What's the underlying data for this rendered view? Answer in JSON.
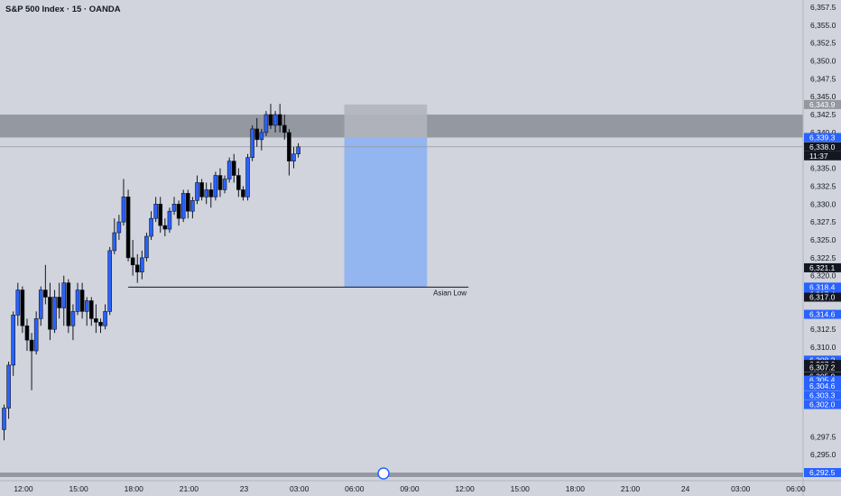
{
  "window": {
    "title": "S&P 500 Index · 15 · OANDA"
  },
  "colors": {
    "background": "#d1d4dc",
    "up_candle": "#2962ff",
    "down_candle": "#000000",
    "supply_zone": "#8a8d96",
    "target_zone": "#8fb3f0",
    "stop_zone": "#b2b5be",
    "current_price_label": "#131722",
    "blue_label": "#2962ff",
    "dark_label": "#131722",
    "axis_text": "#131722"
  },
  "chart_data": {
    "type": "candlestick",
    "symbol": "S&P 500 Index",
    "interval": "15",
    "exchange": "OANDA",
    "ylim": [
      6292.5,
      6358
    ],
    "y_ticks": [
      "6,357.5",
      "6,355.0",
      "6,352.5",
      "6,350.0",
      "6,347.5",
      "6,345.0",
      "6,342.5",
      "6,340.0",
      "6,337.5",
      "6,335.0",
      "6,332.5",
      "6,330.0",
      "6,327.5",
      "6,325.0",
      "6,322.5",
      "6,320.0",
      "6,317.5",
      "6,312.5",
      "6,310.0",
      "6,297.5",
      "6,295.0"
    ],
    "y_tick_values": [
      6357.5,
      6355,
      6352.5,
      6350,
      6347.5,
      6345,
      6342.5,
      6340,
      6337.5,
      6335,
      6332.5,
      6330,
      6327.5,
      6325,
      6322.5,
      6320,
      6317.5,
      6312.5,
      6310,
      6297.5,
      6295
    ],
    "x_ticks": [
      "12:00",
      "15:00",
      "18:00",
      "21:00",
      "23",
      "03:00",
      "06:00",
      "09:00",
      "12:00",
      "15:00",
      "18:00",
      "21:00",
      "24",
      "03:00",
      "06:00"
    ],
    "x_tick_slots": [
      5,
      17,
      29,
      41,
      53,
      65,
      77,
      89,
      101,
      113,
      125,
      137,
      149,
      161,
      173
    ],
    "price_labels": [
      {
        "text": "6,343.9",
        "style": "light",
        "value": 6343.9
      },
      {
        "text": "6,339.3",
        "style": "blue",
        "value": 6339.3
      },
      {
        "text": "6,338.0",
        "style": "dark",
        "value": 6338.0
      },
      {
        "text": "6,321.1",
        "style": "dark",
        "value": 6321.1
      },
      {
        "text": "6,318.4",
        "style": "blue",
        "value": 6318.4
      },
      {
        "text": "6,317.4",
        "style": "blue",
        "value": 6317.4
      },
      {
        "text": "6,317.0",
        "style": "dark",
        "value": 6317.0
      },
      {
        "text": "6,314.6",
        "style": "blue",
        "value": 6314.6
      },
      {
        "text": "6,308.2",
        "style": "blue",
        "value": 6308.2
      },
      {
        "text": "6,307.6",
        "style": "dark",
        "value": 6307.6
      },
      {
        "text": "6,307.2",
        "style": "dark",
        "value": 6307.2
      },
      {
        "text": "6,305.9",
        "style": "dark",
        "value": 6305.9
      },
      {
        "text": "6,305.4",
        "style": "blue",
        "value": 6305.4
      },
      {
        "text": "6,304.6",
        "style": "blue",
        "value": 6304.6
      },
      {
        "text": "6,303.3",
        "style": "blue",
        "value": 6303.3
      },
      {
        "text": "6,302.0",
        "style": "blue",
        "value": 6302.0
      },
      {
        "text": "6,292.5",
        "style": "blue",
        "value": 6292.5
      }
    ],
    "countdown": "11:37",
    "current_price": 6338.0,
    "zones": {
      "supply": {
        "top": 6342.5,
        "bottom": 6339.3
      },
      "position_stop": {
        "top": 6343.9,
        "bottom": 6339.3,
        "start_slot": 74,
        "end_slot": 92
      },
      "position_target": {
        "top": 6339.3,
        "bottom": 6318.4,
        "start_slot": 74,
        "end_slot": 92
      }
    },
    "asian_low": {
      "label": "Asian Low",
      "value": 6318.4,
      "start_slot": 27,
      "end_slot": 101
    },
    "candles": [
      [
        6298.5,
        6302,
        6297,
        6301.5
      ],
      [
        6301.5,
        6308,
        6300,
        6307.5
      ],
      [
        6307.5,
        6315,
        6306,
        6314.5
      ],
      [
        6314.5,
        6319,
        6313,
        6318
      ],
      [
        6318,
        6318.5,
        6312,
        6313
      ],
      [
        6313,
        6314,
        6309.5,
        6311
      ],
      [
        6311,
        6312,
        6304,
        6309.5
      ],
      [
        6309.5,
        6315,
        6309,
        6314
      ],
      [
        6314,
        6318.5,
        6313,
        6318
      ],
      [
        6318,
        6321.5,
        6316,
        6317
      ],
      [
        6317,
        6319,
        6311,
        6312.5
      ],
      [
        6312.5,
        6318,
        6312,
        6317
      ],
      [
        6317,
        6319,
        6314,
        6315.5
      ],
      [
        6315.5,
        6320,
        6313,
        6319
      ],
      [
        6319,
        6319.5,
        6312,
        6313
      ],
      [
        6313,
        6316,
        6311,
        6315
      ],
      [
        6315,
        6319,
        6314.5,
        6318
      ],
      [
        6318,
        6319,
        6314,
        6315
      ],
      [
        6315,
        6317,
        6313,
        6316.5
      ],
      [
        6316.5,
        6317,
        6313,
        6314
      ],
      [
        6314,
        6316,
        6312,
        6313.5
      ],
      [
        6313.5,
        6314,
        6312,
        6313
      ],
      [
        6313,
        6316,
        6312.5,
        6315
      ],
      [
        6315,
        6324,
        6314.5,
        6323.5
      ],
      [
        6323.5,
        6328,
        6323,
        6326
      ],
      [
        6326,
        6328.5,
        6325,
        6327.5
      ],
      [
        6327.5,
        6333.5,
        6327,
        6331
      ],
      [
        6331,
        6332,
        6322,
        6322.5
      ],
      [
        6322.5,
        6325,
        6320,
        6321.5
      ],
      [
        6321.5,
        6323,
        6319,
        6320.5
      ],
      [
        6320.5,
        6323.5,
        6319.5,
        6322.5
      ],
      [
        6322.5,
        6326,
        6322,
        6325.5
      ],
      [
        6325.5,
        6329,
        6325,
        6328
      ],
      [
        6328,
        6331,
        6327.5,
        6330
      ],
      [
        6330,
        6331,
        6326,
        6327
      ],
      [
        6327,
        6328,
        6325.5,
        6326.5
      ],
      [
        6326.5,
        6329.5,
        6326,
        6329
      ],
      [
        6329,
        6331,
        6328.5,
        6330
      ],
      [
        6330,
        6330.5,
        6327,
        6328
      ],
      [
        6328,
        6332,
        6327.5,
        6331.5
      ],
      [
        6331.5,
        6332,
        6328,
        6329
      ],
      [
        6329,
        6331,
        6328,
        6330.5
      ],
      [
        6330.5,
        6334,
        6330,
        6333
      ],
      [
        6333,
        6333.5,
        6330.5,
        6331
      ],
      [
        6331,
        6333,
        6330,
        6332
      ],
      [
        6332,
        6333,
        6329.5,
        6331
      ],
      [
        6331,
        6334.5,
        6330.5,
        6334
      ],
      [
        6334,
        6335,
        6331,
        6332
      ],
      [
        6332,
        6334,
        6331.5,
        6333.5
      ],
      [
        6333.5,
        6336.5,
        6333,
        6336
      ],
      [
        6336,
        6337,
        6333,
        6334
      ],
      [
        6334,
        6335,
        6331,
        6332
      ],
      [
        6332,
        6332.5,
        6330.5,
        6331
      ],
      [
        6331,
        6337,
        6330.5,
        6336.5
      ],
      [
        6336.5,
        6341,
        6336,
        6340.5
      ],
      [
        6340.5,
        6342,
        6338,
        6339
      ],
      [
        6339,
        6340.5,
        6337.5,
        6340
      ],
      [
        6340,
        6343,
        6339.5,
        6342.5
      ],
      [
        6342.5,
        6344,
        6340.5,
        6341
      ],
      [
        6341,
        6343,
        6340,
        6342.5
      ],
      [
        6342.5,
        6344,
        6340,
        6341
      ],
      [
        6341,
        6342.5,
        6339,
        6340
      ],
      [
        6340,
        6340.5,
        6334,
        6336
      ],
      [
        6336,
        6338,
        6335,
        6337
      ],
      [
        6337,
        6338.5,
        6336.5,
        6338
      ]
    ],
    "candle_start_slot": 0
  }
}
